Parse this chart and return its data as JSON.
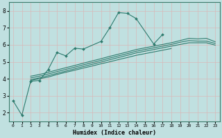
{
  "background_color": "#c0e0e0",
  "grid_color": "#d8b8b8",
  "line_color": "#2e7b6e",
  "xlabel": "Humidex (Indice chaleur)",
  "xlim": [
    -0.5,
    23.5
  ],
  "ylim": [
    1.5,
    8.5
  ],
  "yticks": [
    2,
    3,
    4,
    5,
    6,
    7,
    8
  ],
  "xtick_labels": [
    "0",
    "1",
    "2",
    "3",
    "4",
    "5",
    "6",
    "7",
    "8",
    "9",
    "10",
    "11",
    "12",
    "13",
    "14",
    "15",
    "16",
    "17",
    "18",
    "19",
    "20",
    "21",
    "22",
    "23"
  ],
  "series1_x": [
    0,
    1,
    2,
    3,
    4,
    5,
    6,
    7,
    8,
    10,
    11,
    12,
    13,
    14,
    16,
    17
  ],
  "series1_y": [
    2.7,
    1.85,
    3.85,
    3.9,
    4.55,
    5.55,
    5.35,
    5.8,
    5.75,
    6.2,
    7.0,
    7.9,
    7.85,
    7.55,
    6.05,
    6.6
  ],
  "series2_x": [
    2,
    3,
    4,
    5,
    6,
    7,
    8,
    9,
    10,
    11,
    12,
    13,
    14,
    15,
    16,
    17,
    18
  ],
  "series2_y": [
    3.9,
    4.0,
    4.1,
    4.25,
    4.38,
    4.5,
    4.63,
    4.75,
    4.88,
    5.0,
    5.13,
    5.25,
    5.38,
    5.48,
    5.58,
    5.68,
    5.78
  ],
  "series3_x": [
    2,
    3,
    4,
    5,
    6,
    7,
    8,
    9,
    10,
    11,
    12,
    13,
    14,
    15,
    16,
    17,
    18,
    19,
    20,
    21,
    22,
    23
  ],
  "series3_y": [
    3.95,
    4.05,
    4.18,
    4.32,
    4.45,
    4.58,
    4.72,
    4.85,
    4.98,
    5.12,
    5.25,
    5.38,
    5.52,
    5.62,
    5.72,
    5.82,
    5.92,
    6.02,
    6.12,
    6.12,
    6.12,
    5.98
  ],
  "series4_x": [
    2,
    3,
    4,
    5,
    6,
    7,
    8,
    9,
    10,
    11,
    12,
    13,
    14,
    15,
    16,
    17,
    18,
    19,
    20,
    21,
    22,
    23
  ],
  "series4_y": [
    4.05,
    4.15,
    4.28,
    4.42,
    4.55,
    4.68,
    4.82,
    4.95,
    5.08,
    5.22,
    5.35,
    5.48,
    5.62,
    5.72,
    5.82,
    5.92,
    6.02,
    6.15,
    6.25,
    6.22,
    6.22,
    6.08
  ],
  "series5_x": [
    2,
    3,
    4,
    5,
    6,
    7,
    8,
    9,
    10,
    11,
    12,
    13,
    14,
    15,
    16,
    17,
    18,
    19,
    20,
    21,
    22,
    23
  ],
  "series5_y": [
    4.15,
    4.25,
    4.38,
    4.52,
    4.65,
    4.78,
    4.92,
    5.05,
    5.18,
    5.32,
    5.45,
    5.58,
    5.72,
    5.82,
    5.92,
    6.02,
    6.12,
    6.25,
    6.38,
    6.35,
    6.38,
    6.18
  ]
}
